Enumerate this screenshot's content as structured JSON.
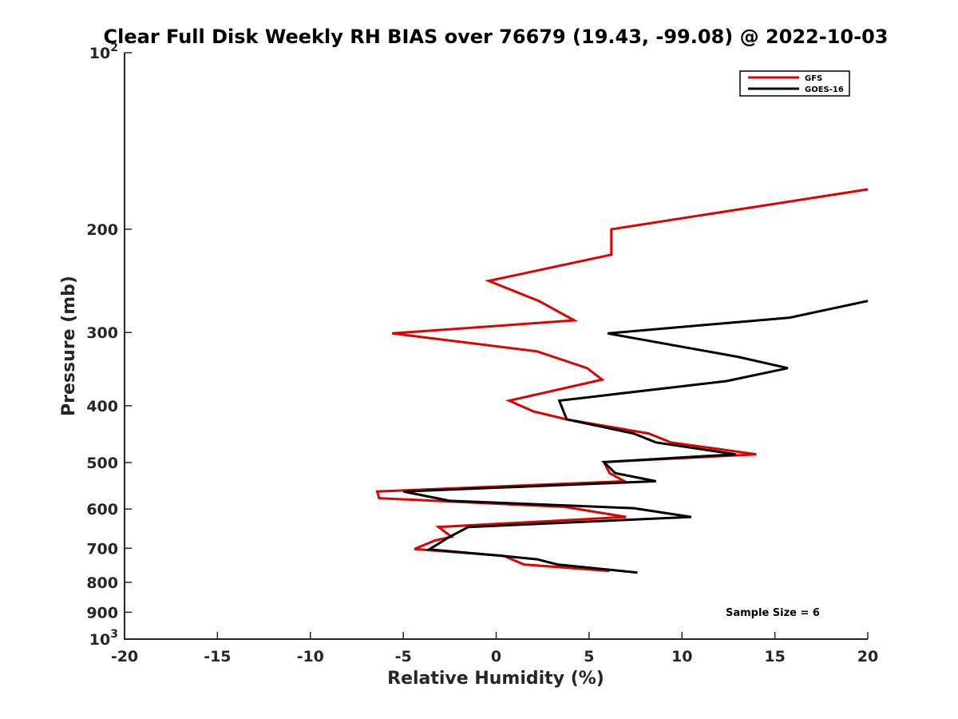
{
  "chart_data": {
    "type": "line",
    "title": "Clear Full Disk Weekly RH BIAS over 76679 (19.43, -99.08) @ 2022-10-03",
    "xlabel": "Relative Humidity (%)",
    "ylabel": "Pressure (mb)",
    "xlim": [
      -20,
      20
    ],
    "ylim": [
      100,
      1000
    ],
    "y_scale": "log",
    "y_reversed": true,
    "x_ticks": [
      -20,
      -15,
      -10,
      -5,
      0,
      5,
      10,
      15,
      20
    ],
    "y_ticks": [
      {
        "value": 100,
        "label": "10",
        "exponent": "2"
      },
      {
        "value": 200,
        "label": "200"
      },
      {
        "value": 300,
        "label": "300"
      },
      {
        "value": 400,
        "label": "400"
      },
      {
        "value": 500,
        "label": "500"
      },
      {
        "value": 600,
        "label": "600"
      },
      {
        "value": 700,
        "label": "700"
      },
      {
        "value": 800,
        "label": "800"
      },
      {
        "value": 900,
        "label": "900"
      },
      {
        "value": 1000,
        "label": "10",
        "exponent": "3"
      }
    ],
    "grid": false,
    "legend_position": "top-right",
    "annotation": "Sample Size = 6",
    "series": [
      {
        "name": "GFS",
        "color": "#e00000",
        "points": [
          [
            20,
            171
          ],
          [
            6.2,
            200
          ],
          [
            6.2,
            221
          ],
          [
            -0.4,
            245
          ],
          [
            2.3,
            265
          ],
          [
            4.2,
            286
          ],
          [
            -5.6,
            301
          ],
          [
            2.2,
            323
          ],
          [
            4.9,
            345
          ],
          [
            5.7,
            361
          ],
          [
            0.7,
            392
          ],
          [
            2.0,
            409
          ],
          [
            3.8,
            422
          ],
          [
            8.2,
            446
          ],
          [
            9.4,
            462
          ],
          [
            14.0,
            484
          ],
          [
            5.8,
            499
          ],
          [
            6.1,
            521
          ],
          [
            6.9,
            538
          ],
          [
            -6.4,
            560
          ],
          [
            -6.3,
            575
          ],
          [
            3.7,
            595
          ],
          [
            7.0,
            619
          ],
          [
            -3.1,
            644
          ],
          [
            -2.4,
            669
          ],
          [
            -3.3,
            679
          ],
          [
            -4.4,
            702
          ],
          [
            0.4,
            721
          ],
          [
            1.5,
            746
          ],
          [
            6.1,
            765
          ]
        ]
      },
      {
        "name": "GOES-16",
        "color": "#000000",
        "points": [
          [
            20,
            265
          ],
          [
            15.8,
            283
          ],
          [
            6.0,
            301
          ],
          [
            13.0,
            330
          ],
          [
            15.7,
            345
          ],
          [
            12.4,
            363
          ],
          [
            3.4,
            392
          ],
          [
            3.6,
            407
          ],
          [
            3.8,
            422
          ],
          [
            7.4,
            446
          ],
          [
            8.6,
            462
          ],
          [
            12.9,
            484
          ],
          [
            5.8,
            499
          ],
          [
            6.4,
            521
          ],
          [
            8.6,
            538
          ],
          [
            -5.0,
            560
          ],
          [
            -2.5,
            581
          ],
          [
            7.4,
            598
          ],
          [
            10.5,
            619
          ],
          [
            -1.5,
            644
          ],
          [
            -2.5,
            669
          ],
          [
            -3.6,
            703
          ],
          [
            0.3,
            721
          ],
          [
            2.2,
            731
          ],
          [
            3.3,
            746
          ],
          [
            7.6,
            770
          ]
        ]
      }
    ]
  }
}
